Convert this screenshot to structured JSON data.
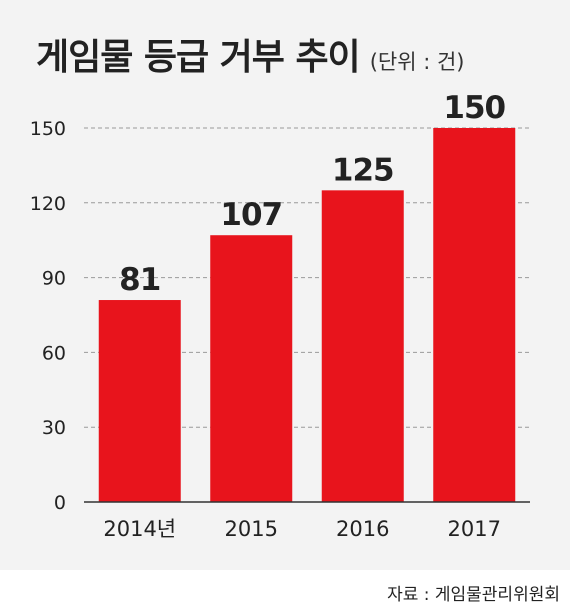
{
  "title": "게임물 등급 거부 추이",
  "unit": "(단위 : 건)",
  "source": "자료 : 게임물관리위원회",
  "colors": {
    "bar": "#e8141c",
    "background": "#f3f3f3",
    "grid": "#9a9a9a",
    "text": "#222222"
  },
  "chart_data": {
    "type": "bar",
    "title": "게임물 등급 거부 추이",
    "unit": "(단위 : 건)",
    "categories": [
      "2014년",
      "2015",
      "2016",
      "2017"
    ],
    "values": [
      81,
      107,
      125,
      150
    ],
    "yticks": [
      0,
      30,
      60,
      90,
      120,
      150
    ],
    "ylim": [
      0,
      150
    ],
    "grid": "dashed-horizontal",
    "data_labels": true,
    "legend": "none"
  }
}
